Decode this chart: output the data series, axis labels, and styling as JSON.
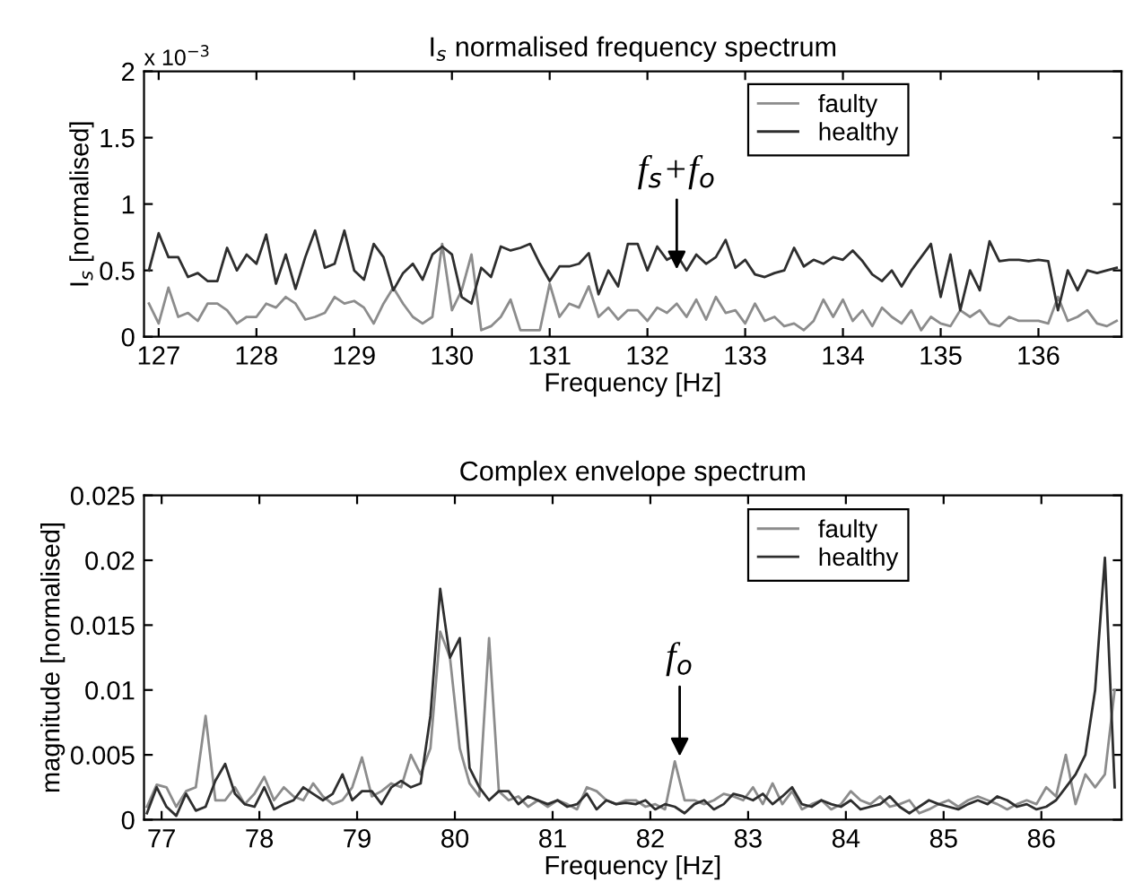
{
  "chart_data": [
    {
      "type": "line",
      "title": "I$_{s}$ normalised frequency spectrum",
      "xlabel": "Frequency [Hz]",
      "ylabel": "I$_{s}$ [normalised]",
      "x": [
        126.9,
        127.0,
        127.1,
        127.2,
        127.3,
        127.4,
        127.5,
        127.6,
        127.7,
        127.8,
        127.9,
        128.0,
        128.1,
        128.2,
        128.3,
        128.4,
        128.5,
        128.6,
        128.7,
        128.8,
        128.9,
        129.0,
        129.1,
        129.2,
        129.3,
        129.4,
        129.5,
        129.6,
        129.7,
        129.8,
        129.9,
        130.0,
        130.1,
        130.2,
        130.3,
        130.4,
        130.5,
        130.6,
        130.7,
        130.8,
        130.9,
        131.0,
        131.1,
        131.2,
        131.3,
        131.4,
        131.5,
        131.6,
        131.7,
        131.8,
        131.9,
        132.0,
        132.1,
        132.2,
        132.3,
        132.4,
        132.5,
        132.6,
        132.7,
        132.8,
        132.9,
        133.0,
        133.1,
        133.2,
        133.3,
        133.4,
        133.5,
        133.6,
        133.7,
        133.8,
        133.9,
        134.0,
        134.1,
        134.2,
        134.3,
        134.4,
        134.5,
        134.6,
        134.7,
        134.8,
        134.9,
        135.0,
        135.1,
        135.2,
        135.3,
        135.4,
        135.5,
        135.6,
        135.7,
        135.8,
        135.9,
        136.0,
        136.1,
        136.2,
        136.3,
        136.4,
        136.5,
        136.6,
        136.7,
        136.8
      ],
      "series": [
        {
          "name": "faulty",
          "color": "#8c8c8c",
          "values": [
            0.25,
            0.1,
            0.37,
            0.15,
            0.18,
            0.12,
            0.25,
            0.25,
            0.2,
            0.1,
            0.15,
            0.15,
            0.25,
            0.22,
            0.3,
            0.25,
            0.13,
            0.15,
            0.18,
            0.3,
            0.25,
            0.27,
            0.22,
            0.1,
            0.25,
            0.37,
            0.25,
            0.15,
            0.1,
            0.15,
            0.7,
            0.2,
            0.35,
            0.62,
            0.05,
            0.08,
            0.15,
            0.28,
            0.05,
            0.05,
            0.05,
            0.4,
            0.15,
            0.25,
            0.22,
            0.38,
            0.15,
            0.22,
            0.13,
            0.2,
            0.2,
            0.12,
            0.22,
            0.18,
            0.25,
            0.15,
            0.28,
            0.13,
            0.3,
            0.18,
            0.2,
            0.1,
            0.25,
            0.12,
            0.15,
            0.08,
            0.1,
            0.05,
            0.12,
            0.28,
            0.15,
            0.28,
            0.12,
            0.2,
            0.08,
            0.22,
            0.15,
            0.1,
            0.2,
            0.05,
            0.15,
            0.1,
            0.08,
            0.2,
            0.15,
            0.2,
            0.1,
            0.08,
            0.15,
            0.12,
            0.12,
            0.12,
            0.1,
            0.3,
            0.12,
            0.15,
            0.2,
            0.1,
            0.08,
            0.12
          ]
        },
        {
          "name": "healthy",
          "color": "#2e2e2e",
          "values": [
            0.5,
            0.78,
            0.6,
            0.6,
            0.45,
            0.48,
            0.42,
            0.42,
            0.67,
            0.5,
            0.62,
            0.55,
            0.77,
            0.4,
            0.62,
            0.36,
            0.6,
            0.8,
            0.52,
            0.55,
            0.8,
            0.5,
            0.43,
            0.7,
            0.6,
            0.35,
            0.48,
            0.55,
            0.43,
            0.62,
            0.68,
            0.62,
            0.3,
            0.25,
            0.52,
            0.45,
            0.68,
            0.65,
            0.67,
            0.7,
            0.55,
            0.42,
            0.53,
            0.53,
            0.55,
            0.63,
            0.32,
            0.5,
            0.38,
            0.7,
            0.7,
            0.5,
            0.68,
            0.58,
            0.62,
            0.5,
            0.62,
            0.55,
            0.6,
            0.73,
            0.52,
            0.58,
            0.47,
            0.45,
            0.48,
            0.5,
            0.67,
            0.53,
            0.58,
            0.55,
            0.6,
            0.58,
            0.65,
            0.57,
            0.47,
            0.42,
            0.5,
            0.38,
            0.5,
            0.6,
            0.7,
            0.3,
            0.62,
            0.2,
            0.5,
            0.35,
            0.72,
            0.57,
            0.58,
            0.58,
            0.57,
            0.58,
            0.57,
            0.2,
            0.5,
            0.35,
            0.5,
            0.48,
            0.5,
            0.52
          ]
        }
      ],
      "xlim": [
        126.85,
        136.85
      ],
      "xticks": [
        127,
        128,
        129,
        130,
        131,
        132,
        133,
        134,
        135,
        136
      ],
      "ylim": [
        0,
        2
      ],
      "yticks": [
        0,
        0.5,
        1,
        1.5,
        2
      ],
      "annotations": [
        "x 10$^{−3}$",
        {
          "text": "f$_{s}$+f$_{o}$",
          "x": 132.3,
          "y": 0.47
        }
      ],
      "legend": "top",
      "grid": false,
      "line_style": "solid",
      "marker": "none"
    },
    {
      "type": "line",
      "title": "Complex envelope spectrum",
      "xlabel": "Frequency [Hz]",
      "ylabel": "magnitude [normalised]",
      "x": [
        76.85,
        76.95,
        77.05,
        77.15,
        77.25,
        77.35,
        77.45,
        77.55,
        77.65,
        77.75,
        77.85,
        77.95,
        78.05,
        78.15,
        78.25,
        78.35,
        78.45,
        78.55,
        78.65,
        78.75,
        78.85,
        78.95,
        79.05,
        79.15,
        79.25,
        79.35,
        79.45,
        79.55,
        79.65,
        79.75,
        79.85,
        79.95,
        80.05,
        80.15,
        80.25,
        80.35,
        80.45,
        80.55,
        80.65,
        80.75,
        80.85,
        80.95,
        81.05,
        81.15,
        81.25,
        81.35,
        81.45,
        81.55,
        81.65,
        81.75,
        81.85,
        81.95,
        82.05,
        82.15,
        82.25,
        82.35,
        82.45,
        82.55,
        82.65,
        82.75,
        82.85,
        82.95,
        83.05,
        83.15,
        83.25,
        83.35,
        83.45,
        83.55,
        83.65,
        83.75,
        83.85,
        83.95,
        84.05,
        84.15,
        84.25,
        84.35,
        84.45,
        84.55,
        84.65,
        84.75,
        84.85,
        84.95,
        85.05,
        85.15,
        85.25,
        85.35,
        85.45,
        85.55,
        85.65,
        85.75,
        85.85,
        85.95,
        86.05,
        86.15,
        86.25,
        86.35,
        86.45,
        86.55,
        86.65,
        86.75
      ],
      "series": [
        {
          "name": "faulty",
          "color": "#8c8c8c",
          "values": [
            0.001,
            0.0027,
            0.0025,
            0.001,
            0.0022,
            0.0025,
            0.008,
            0.0015,
            0.0015,
            0.0025,
            0.0012,
            0.002,
            0.0033,
            0.0015,
            0.0025,
            0.0018,
            0.0015,
            0.0028,
            0.0018,
            0.0012,
            0.0015,
            0.0025,
            0.0048,
            0.0018,
            0.0022,
            0.0028,
            0.0025,
            0.005,
            0.0035,
            0.0055,
            0.0145,
            0.0125,
            0.0055,
            0.0028,
            0.0018,
            0.014,
            0.0022,
            0.0015,
            0.0018,
            0.001,
            0.0015,
            0.001,
            0.0015,
            0.0012,
            0.0008,
            0.0025,
            0.0022,
            0.0015,
            0.0012,
            0.0015,
            0.0015,
            0.001,
            0.0012,
            0.0008,
            0.0045,
            0.0015,
            0.0015,
            0.0012,
            0.0015,
            0.002,
            0.0018,
            0.0015,
            0.0025,
            0.0012,
            0.0028,
            0.0012,
            0.0022,
            0.0008,
            0.0012,
            0.0015,
            0.0008,
            0.0012,
            0.0022,
            0.0015,
            0.0012,
            0.0018,
            0.001,
            0.0012,
            0.0015,
            0.0005,
            0.0008,
            0.0012,
            0.0015,
            0.001,
            0.0015,
            0.0018,
            0.0015,
            0.0012,
            0.0008,
            0.0012,
            0.0015,
            0.0012,
            0.0025,
            0.0018,
            0.005,
            0.0012,
            0.0035,
            0.0025,
            0.0035,
            0.01
          ]
        },
        {
          "name": "healthy",
          "color": "#2e2e2e",
          "values": [
            0.0005,
            0.0025,
            0.001,
            0.0003,
            0.002,
            0.0007,
            0.001,
            0.003,
            0.0043,
            0.002,
            0.0012,
            0.001,
            0.0025,
            0.0008,
            0.0012,
            0.0015,
            0.0025,
            0.002,
            0.0015,
            0.002,
            0.0035,
            0.0015,
            0.0022,
            0.0022,
            0.0012,
            0.0025,
            0.003,
            0.0025,
            0.0028,
            0.008,
            0.0178,
            0.0125,
            0.014,
            0.004,
            0.0025,
            0.0015,
            0.0022,
            0.0022,
            0.0012,
            0.0018,
            0.0015,
            0.0012,
            0.0015,
            0.001,
            0.0012,
            0.002,
            0.0008,
            0.0015,
            0.0012,
            0.0013,
            0.0012,
            0.0015,
            0.0008,
            0.0012,
            0.001,
            0.0005,
            0.0012,
            0.0015,
            0.0008,
            0.0012,
            0.002,
            0.0018,
            0.0015,
            0.002,
            0.0012,
            0.0018,
            0.0025,
            0.0012,
            0.001,
            0.0015,
            0.0012,
            0.001,
            0.0015,
            0.0008,
            0.001,
            0.0012,
            0.0018,
            0.001,
            0.0005,
            0.001,
            0.0015,
            0.0012,
            0.001,
            0.0008,
            0.0012,
            0.0015,
            0.0012,
            0.0018,
            0.0015,
            0.001,
            0.0012,
            0.0008,
            0.001,
            0.0015,
            0.0025,
            0.0035,
            0.005,
            0.01,
            0.0202,
            0.0025
          ]
        }
      ],
      "xlim": [
        76.82,
        86.82
      ],
      "xticks": [
        77,
        78,
        79,
        80,
        81,
        82,
        83,
        84,
        85,
        86
      ],
      "ylim": [
        0,
        0.025
      ],
      "yticks": [
        0,
        0.005,
        0.01,
        0.015,
        0.02,
        0.025
      ],
      "annotations": [
        {
          "text": "f$_{o}$",
          "x": 82.3,
          "y": 0.0045
        }
      ],
      "legend": "top",
      "grid": false,
      "line_style": "solid",
      "marker": "none"
    }
  ]
}
